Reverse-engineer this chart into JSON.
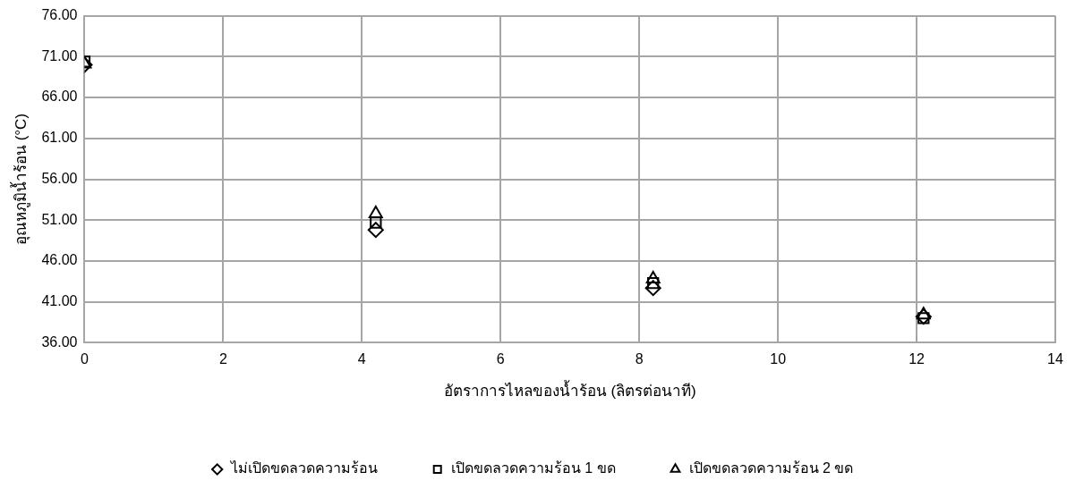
{
  "chart_data": {
    "type": "scatter",
    "xlabel": "อัตราการไหลของน้ำร้อน (ลิตรต่อนาที)",
    "ylabel": "อุณหภูมิน้ำร้อน (°C)",
    "xlim": [
      0,
      14
    ],
    "xticks": [
      0,
      2,
      4,
      6,
      8,
      10,
      12,
      14
    ],
    "ylim": [
      36,
      76
    ],
    "yticks": [
      {
        "value": 36,
        "label": "36.00"
      },
      {
        "value": 41,
        "label": "41.00"
      },
      {
        "value": 46,
        "label": "46.00"
      },
      {
        "value": 51,
        "label": "51.00"
      },
      {
        "value": 56,
        "label": "56.00"
      },
      {
        "value": 61,
        "label": "61.00"
      },
      {
        "value": 66,
        "label": "66.00"
      },
      {
        "value": 71,
        "label": "71.00"
      },
      {
        "value": 76,
        "label": "76.00"
      }
    ],
    "grid": true,
    "legend": "bottom",
    "series": [
      {
        "name": "ไม่เปิดขดลวดความร้อน",
        "color": "#000000",
        "marker": "diamond",
        "x": [
          0,
          4.2,
          8.2,
          12.1
        ],
        "values": [
          70.0,
          49.8,
          42.7,
          39.2
        ]
      },
      {
        "name": "เปิดขดลวดความร้อน 1 ขด",
        "color": "#000000",
        "marker": "square",
        "x": [
          0,
          4.2,
          8.2,
          12.1
        ],
        "values": [
          70.4,
          50.7,
          43.3,
          39.0
        ]
      },
      {
        "name": "เปิดขดลวดความร้อน 2 ขด",
        "color": "#000000",
        "marker": "triangle",
        "x": [
          0,
          4.2,
          8.2,
          12.1
        ],
        "values": [
          70.1,
          51.8,
          43.8,
          39.4
        ]
      }
    ]
  }
}
